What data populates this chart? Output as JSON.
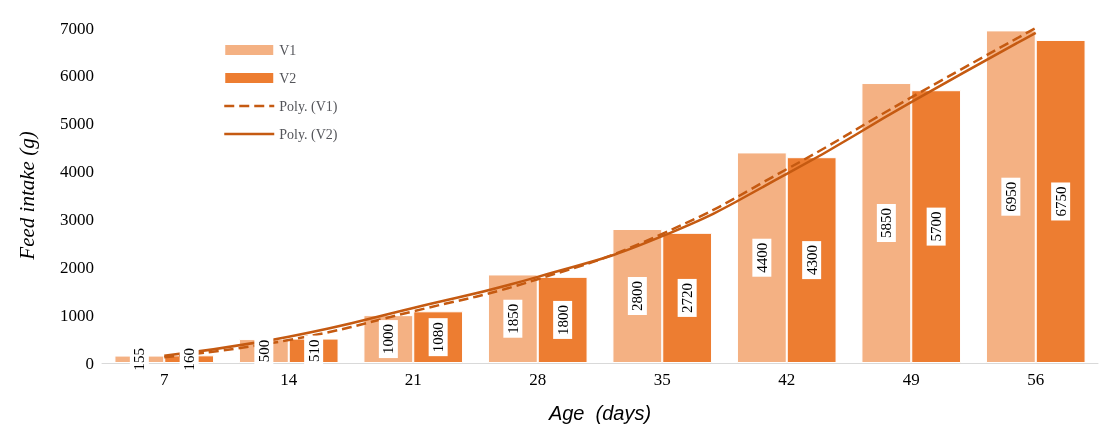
{
  "chart_data": {
    "type": "bar",
    "xlabel": "Age  (days)",
    "ylabel": "Feed intake (g)",
    "categories": [
      "7",
      "14",
      "21",
      "28",
      "35",
      "42",
      "49",
      "56"
    ],
    "series": [
      {
        "name": "V1",
        "color": "#f4b183",
        "values": [
          155,
          500,
          1000,
          1850,
          2800,
          4400,
          5850,
          6950
        ],
        "value_labels": [
          "155",
          "500",
          "1000",
          "1850",
          "2800",
          "4400",
          "5850",
          "6950"
        ]
      },
      {
        "name": "V2",
        "color": "#ed7d31",
        "values": [
          160,
          510,
          1080,
          1800,
          2720,
          4300,
          5700,
          6750
        ],
        "value_labels": [
          "160",
          "510",
          "1080",
          "1800",
          "2720",
          "4300",
          "5700",
          "6750"
        ]
      },
      {
        "name": "Poly. (V1)",
        "type": "line",
        "line_style": "dashed",
        "color": "#c55a11",
        "x": [
          "7",
          "14",
          "21",
          "28",
          "35",
          "42",
          "49",
          "56"
        ],
        "values": [
          120,
          480,
          1080,
          1750,
          2700,
          4050,
          5550,
          7000
        ]
      },
      {
        "name": "Poly. (V2)",
        "type": "line",
        "line_style": "solid",
        "color": "#c55a11",
        "x": [
          "7",
          "14",
          "21",
          "28",
          "35",
          "42",
          "49",
          "56"
        ],
        "values": [
          150,
          550,
          1150,
          1800,
          2650,
          3950,
          5450,
          6900
        ]
      }
    ],
    "ylim": [
      0,
      7000
    ],
    "yticks": [
      0,
      1000,
      2000,
      3000,
      4000,
      5000,
      6000,
      7000
    ],
    "legend": "top left",
    "marker": "none"
  }
}
